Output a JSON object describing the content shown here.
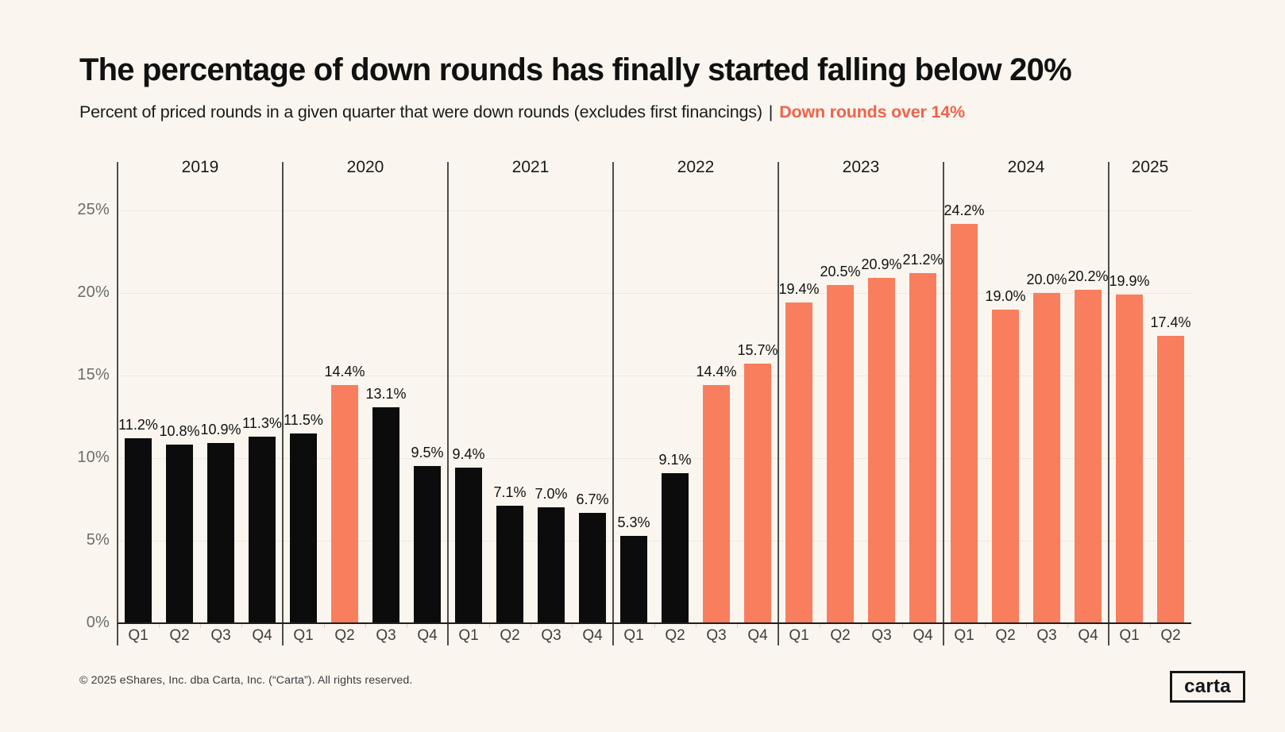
{
  "page": {
    "title": "The percentage of down rounds has finally started falling below 20%",
    "subtitle_plain": "Percent of priced rounds in a given quarter that were down rounds (excludes first financings)",
    "subtitle_separator": "|",
    "subtitle_highlight": "Down rounds over 14%",
    "footer_copyright": "© 2025 eShares, Inc. dba Carta, Inc. (“Carta”). All rights reserved.",
    "logo_text": "carta"
  },
  "colors": {
    "background": "#FAF6EF",
    "bar_black": "#0C0C0C",
    "bar_orange": "#F87E5D",
    "highlight_text": "#F0624A",
    "gridline": "#EDE8E0",
    "year_divider": "#4D4D4D"
  },
  "chart_data": {
    "type": "bar",
    "title": "The percentage of down rounds has finally started falling below 20%",
    "subtitle": "Percent of priced rounds in a given quarter that were down rounds (excludes first financings) | Down rounds over 14%",
    "xlabel": "",
    "ylabel": "",
    "ylim": [
      0,
      28
    ],
    "grid": "horizontal",
    "legend_note": "Down rounds over 14% shown in orange",
    "highlight_threshold_pct": 14,
    "yticks": [
      {
        "value": 0,
        "label": "0%"
      },
      {
        "value": 5,
        "label": "5%"
      },
      {
        "value": 10,
        "label": "10%"
      },
      {
        "value": 15,
        "label": "15%"
      },
      {
        "value": 20,
        "label": "20%"
      },
      {
        "value": 25,
        "label": "25%"
      }
    ],
    "groups": [
      {
        "year": "2019",
        "quarters": [
          "Q1",
          "Q2",
          "Q3",
          "Q4"
        ],
        "values": [
          11.2,
          10.8,
          10.9,
          11.3
        ]
      },
      {
        "year": "2020",
        "quarters": [
          "Q1",
          "Q2",
          "Q3",
          "Q4"
        ],
        "values": [
          11.5,
          14.4,
          13.1,
          9.5
        ]
      },
      {
        "year": "2021",
        "quarters": [
          "Q1",
          "Q2",
          "Q3",
          "Q4"
        ],
        "values": [
          9.4,
          7.1,
          7.0,
          6.7
        ]
      },
      {
        "year": "2022",
        "quarters": [
          "Q1",
          "Q2",
          "Q3",
          "Q4"
        ],
        "values": [
          5.3,
          9.1,
          14.4,
          15.7
        ]
      },
      {
        "year": "2023",
        "quarters": [
          "Q1",
          "Q2",
          "Q3",
          "Q4"
        ],
        "values": [
          19.4,
          20.5,
          20.9,
          21.2
        ]
      },
      {
        "year": "2024",
        "quarters": [
          "Q1",
          "Q2",
          "Q3",
          "Q4"
        ],
        "values": [
          24.2,
          19.0,
          20.0,
          20.2
        ]
      },
      {
        "year": "2025",
        "quarters": [
          "Q1",
          "Q2"
        ],
        "values": [
          19.9,
          17.4
        ]
      }
    ]
  }
}
